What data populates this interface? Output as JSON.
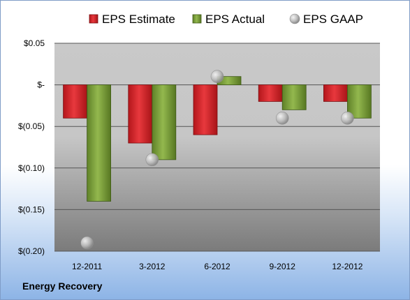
{
  "chart_data": {
    "type": "bar",
    "categories": [
      "12-2011",
      "3-2012",
      "6-2012",
      "9-2012",
      "12-2012"
    ],
    "series": [
      {
        "name": "EPS Estimate",
        "kind": "bar",
        "color": "#d9262c",
        "values": [
          -0.04,
          -0.07,
          -0.06,
          -0.02,
          -0.02
        ]
      },
      {
        "name": "EPS Actual",
        "kind": "bar",
        "color": "#7fa33c",
        "values": [
          -0.14,
          -0.09,
          0.01,
          -0.03,
          -0.04
        ]
      },
      {
        "name": "EPS GAAP",
        "kind": "marker",
        "color": "#b8b8b8",
        "values": [
          -0.19,
          -0.09,
          0.01,
          -0.04,
          -0.04
        ]
      }
    ],
    "y_ticks": [
      {
        "value": 0.05,
        "label": "$0.05"
      },
      {
        "value": 0,
        "label": "$-"
      },
      {
        "value": -0.05,
        "label": "$(0.05)"
      },
      {
        "value": -0.1,
        "label": "$(0.10)"
      },
      {
        "value": -0.15,
        "label": "$(0.15)"
      },
      {
        "value": -0.2,
        "label": "$(0.20)"
      }
    ],
    "ylim": [
      -0.2,
      0.05
    ],
    "grid": true,
    "legend_position": "top-center"
  },
  "company": "Energy Recovery"
}
